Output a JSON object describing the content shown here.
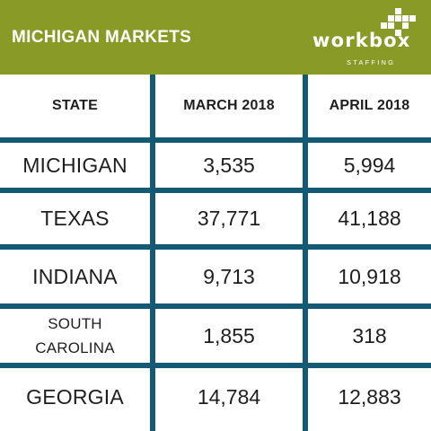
{
  "header": {
    "title": "MICHIGAN MARKETS",
    "logo_word": "workbox",
    "logo_sub": "STAFFING",
    "bg_color": "#8a9a27"
  },
  "table": {
    "line_color": "#155a75",
    "columns": [
      "STATE",
      "MARCH 2018",
      "APRIL 2018"
    ],
    "rows": [
      {
        "state": "MICHIGAN",
        "march": "3,535",
        "april": "5,994"
      },
      {
        "state": "TEXAS",
        "march": "37,771",
        "april": "41,188"
      },
      {
        "state": "INDIANA",
        "march": "9,713",
        "april": "10,918"
      },
      {
        "state": "SOUTH CAROLINA",
        "state_line1": "SOUTH",
        "state_line2": "CAROLINA",
        "march": "1,855",
        "april": "318"
      },
      {
        "state": "GEORGIA",
        "march": "14,784",
        "april": "12,883"
      }
    ]
  }
}
